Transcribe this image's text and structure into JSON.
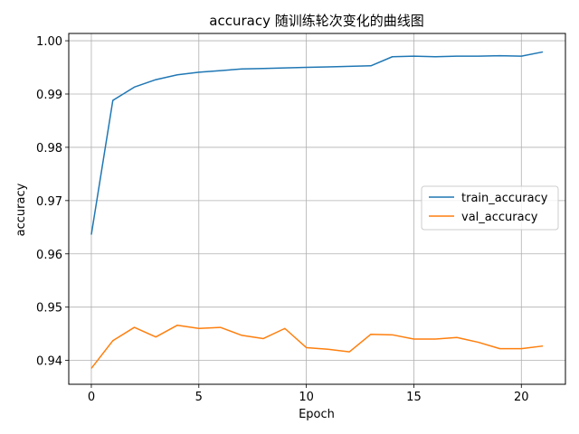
{
  "chart_data": {
    "type": "line",
    "title": "accuracy 随训练轮次变化的曲线图",
    "xlabel": "Epoch",
    "ylabel": "accuracy",
    "xlim": [
      -1.05,
      22.05
    ],
    "ylim": [
      0.93552,
      1.00137
    ],
    "xticks": [
      0,
      5,
      10,
      15,
      20
    ],
    "yticks": [
      0.94,
      0.95,
      0.96,
      0.97,
      0.98,
      0.99,
      1.0
    ],
    "ytick_labels": [
      "0.94",
      "0.95",
      "0.96",
      "0.97",
      "0.98",
      "0.99",
      "1.00"
    ],
    "grid": true,
    "legend_position": "center-right",
    "x": [
      0,
      1,
      2,
      3,
      4,
      5,
      6,
      7,
      8,
      9,
      10,
      11,
      12,
      13,
      14,
      15,
      16,
      17,
      18,
      19,
      20,
      21
    ],
    "series": [
      {
        "name": "train_accuracy",
        "color": "#1f77b4",
        "values": [
          0.9636,
          0.9888,
          0.9913,
          0.9927,
          0.9936,
          0.9941,
          0.9944,
          0.9947,
          0.9948,
          0.9949,
          0.995,
          0.9951,
          0.9952,
          0.9953,
          0.997,
          0.9971,
          0.997,
          0.9971,
          0.9971,
          0.9972,
          0.9971,
          0.9979
        ]
      },
      {
        "name": "val_accuracy",
        "color": "#ff7f0e",
        "values": [
          0.9385,
          0.9437,
          0.9462,
          0.9444,
          0.9466,
          0.946,
          0.9462,
          0.9447,
          0.9441,
          0.946,
          0.9424,
          0.9421,
          0.9416,
          0.9449,
          0.9448,
          0.944,
          0.944,
          0.9443,
          0.9434,
          0.9422,
          0.9422,
          0.9427
        ]
      }
    ]
  }
}
